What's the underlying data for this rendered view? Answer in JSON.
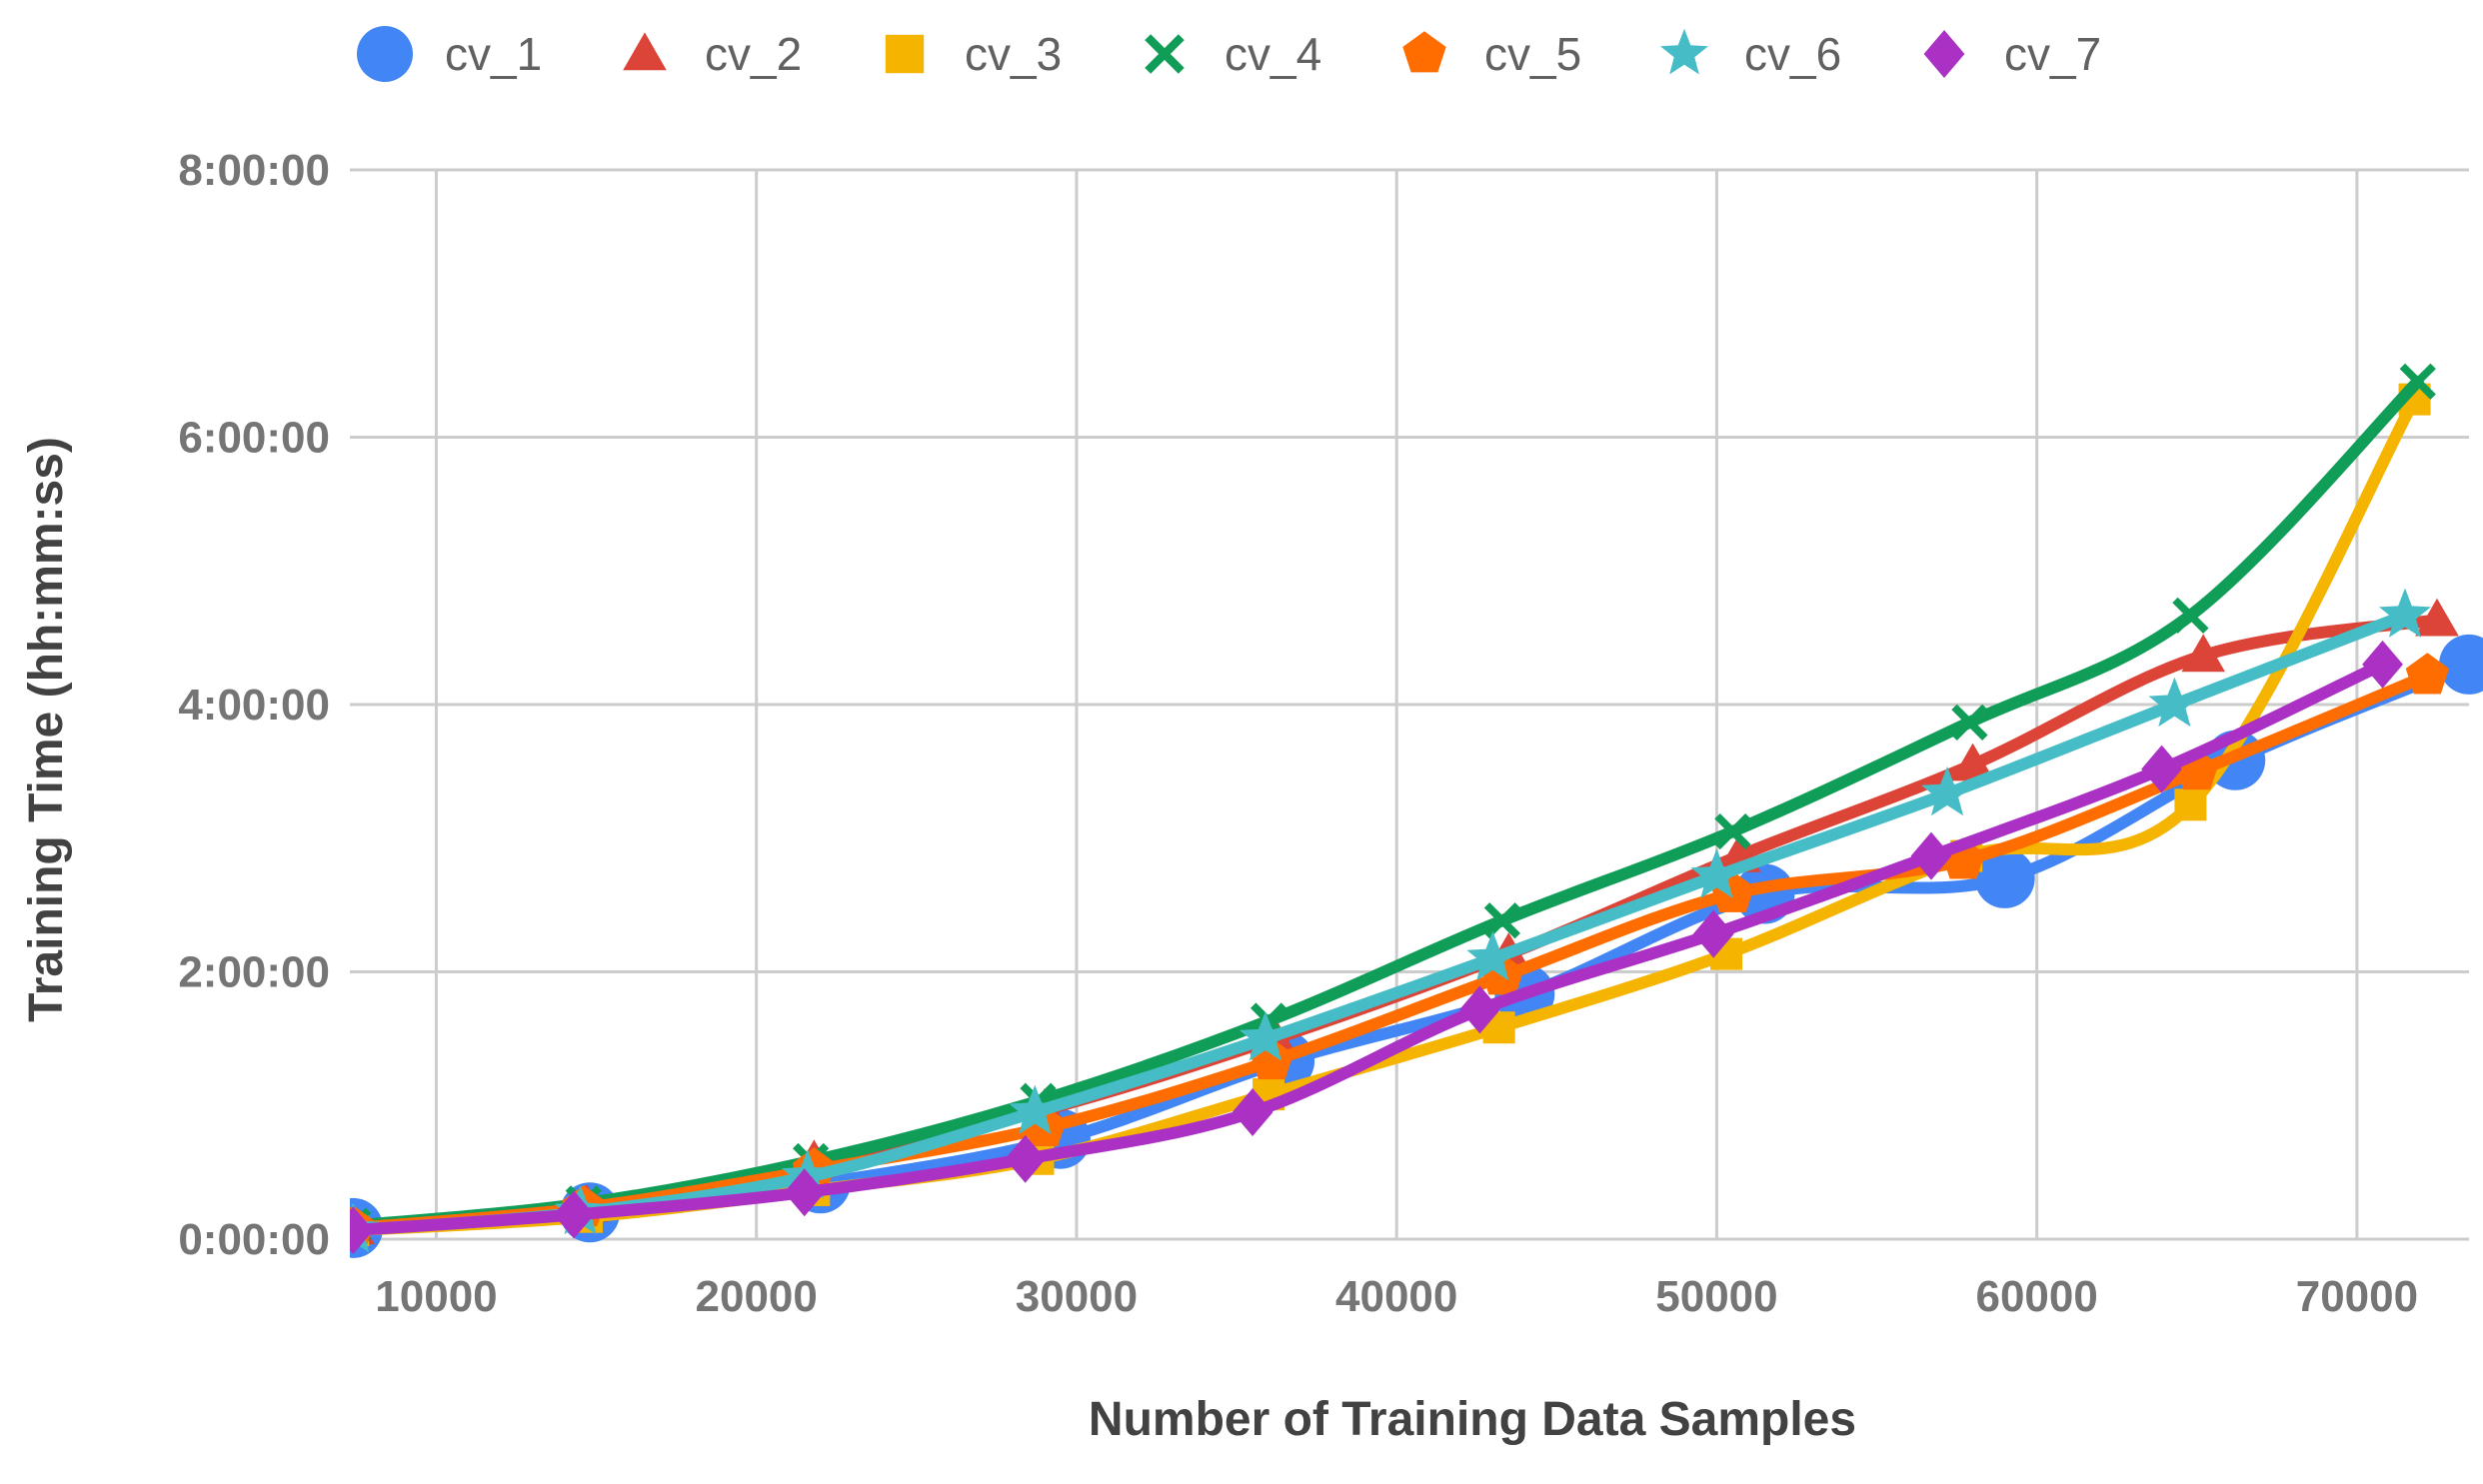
{
  "chart_data": {
    "type": "line",
    "title": "",
    "xlabel": "Number of Training Data Samples",
    "ylabel": "Training Time (hh:mm:ss)",
    "xlim": [
      7300,
      73500
    ],
    "ylim": [
      0,
      480
    ],
    "x_ticks": [
      10000,
      20000,
      30000,
      40000,
      50000,
      60000,
      70000
    ],
    "x_tick_labels": [
      "10000",
      "20000",
      "30000",
      "40000",
      "50000",
      "60000",
      "70000"
    ],
    "y_ticks": [
      0,
      120,
      240,
      360,
      480
    ],
    "y_tick_labels": [
      "0:00:00",
      "2:00:00",
      "4:00:00",
      "6:00:00",
      "8:00:00"
    ],
    "y_unit": "minutes",
    "grid": true,
    "legend_position": "top",
    "series": [
      {
        "name": "cv_1",
        "color": "#4285F4",
        "marker": "circle",
        "x": [
          7400,
          14800,
          22000,
          29500,
          36500,
          44000,
          51500,
          59000,
          66200,
          73500
        ],
        "y": [
          5,
          12,
          25,
          45,
          80,
          110,
          155,
          162,
          215,
          258
        ]
      },
      {
        "name": "cv_2",
        "color": "#DB4437",
        "marker": "triangle",
        "x": [
          7400,
          14700,
          21800,
          29000,
          36200,
          43500,
          50700,
          58000,
          65200,
          72500
        ],
        "y": [
          5,
          15,
          35,
          58,
          90,
          128,
          172,
          213,
          262,
          278
        ]
      },
      {
        "name": "cv_3",
        "color": "#F4B400",
        "marker": "square",
        "x": [
          7400,
          14700,
          21800,
          28800,
          36000,
          43200,
          50300,
          57800,
          64800,
          71800
        ],
        "y": [
          4,
          10,
          22,
          36,
          65,
          95,
          128,
          172,
          195,
          377
        ]
      },
      {
        "name": "cv_4",
        "color": "#0F9D58",
        "marker": "x",
        "x": [
          7400,
          14600,
          21700,
          28800,
          36000,
          43300,
          50500,
          57900,
          64800,
          71900
        ],
        "y": [
          6,
          16,
          35,
          62,
          98,
          143,
          183,
          232,
          280,
          385
        ]
      },
      {
        "name": "cv_5",
        "color": "#FF6D00",
        "marker": "pentagon",
        "x": [
          7400,
          14600,
          21800,
          29000,
          36100,
          43300,
          50500,
          57700,
          65000,
          72200
        ],
        "y": [
          5,
          14,
          31,
          50,
          80,
          118,
          155,
          170,
          210,
          253
        ]
      },
      {
        "name": "cv_6",
        "color": "#46BDC6",
        "marker": "star",
        "x": [
          7400,
          14500,
          21600,
          28700,
          35900,
          43000,
          50000,
          57200,
          64300,
          71500
        ],
        "y": [
          4,
          12,
          28,
          57,
          90,
          126,
          163,
          200,
          240,
          280
        ]
      },
      {
        "name": "cv_7",
        "color": "#AB30C4",
        "marker": "diamond",
        "x": [
          7400,
          14300,
          21500,
          28400,
          35500,
          42600,
          49900,
          56700,
          63900,
          70800
        ],
        "y": [
          4,
          11,
          21,
          36,
          57,
          103,
          137,
          172,
          211,
          258
        ]
      }
    ]
  }
}
